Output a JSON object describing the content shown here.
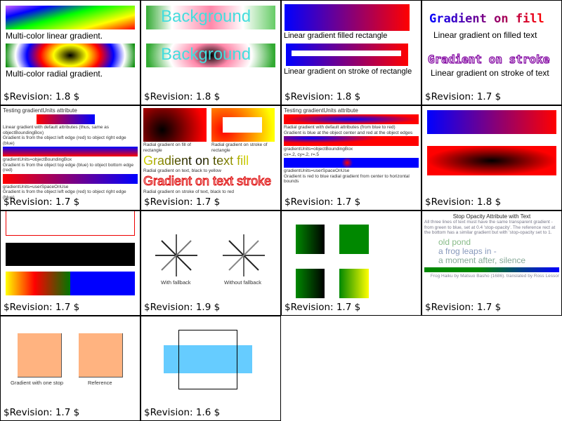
{
  "cells": [
    {
      "revision": "$Revision: 1.8 $",
      "captions": [
        "Multi-color linear gradient.",
        "Multi-color radial gradient."
      ]
    },
    {
      "revision": "$Revision: 1.8 $",
      "texts": [
        "Background",
        "Background"
      ]
    },
    {
      "revision": "$Revision: 1.8 $",
      "captions": [
        "Linear gradient filled rectangle",
        "Linear gradient on stroke of rectangle"
      ]
    },
    {
      "revision": "$Revision: 1.7 $",
      "big": [
        "Gradient on fill",
        "Gradient on stroke"
      ],
      "captions": [
        "Linear gradient on filled text",
        "Linear gradient on stroke of text"
      ]
    },
    {
      "revision": "$Revision: 1.7 $",
      "title": "Testing gradientUnits attribute",
      "captions": [
        "Linear gradient with default attributes (thus, same as objectBoundingBox)",
        "Gradient is from the object left edge (red) to object right edge (blue)",
        "gradientUnits=objectBoundingBox",
        "Gradient is from the object top edge (blue) to object bottom edge (red)",
        "gradientUnits=userSpaceOnUse",
        "Gradient is from the object left edge (red) to object right edge (blue)"
      ]
    },
    {
      "revision": "$Revision: 1.7 $",
      "captions": [
        "Radial gradient on fill of rectangle",
        "Radial gradient on stroke of rectangle",
        "Radial gradient on text, black to yellow",
        "Radial gradient on stroke of text, black to red"
      ],
      "big": [
        "Gradient on text fill",
        "Gradient on text stroke"
      ]
    },
    {
      "revision": "$Revision: 1.7 $",
      "title": "Testing gradientUnits attribute",
      "captions": [
        "Radial gradient with default attributes (from blue to red)",
        "Gradient is blue at the object center and red at the object edges",
        "gradientUnits=objectBoundingBox",
        "cx=.2, cy=.2, r=.5",
        "gradientUnits=userSpaceOnUse",
        "Gradient is red to blue radial gradient from center to horizontal bounds"
      ]
    },
    {
      "revision": "$Revision: 1.8 $"
    },
    {
      "revision": "$Revision: 1.7 $"
    },
    {
      "revision": "$Revision: 1.9 $",
      "captions": [
        "With fallback",
        "Without fallback"
      ]
    },
    {
      "revision": "$Revision: 1.7 $"
    },
    {
      "revision": "$Revision: 1.7 $",
      "title": "Stop Opacity Attribute with Text",
      "description": [
        "All three lines of text must have the same transparent gradient -",
        "from green to blue, set at 0.4 'stop-opacity'. The reference rect at",
        "the bottom has a similar gradient but with 'stop-opacity set to 1."
      ],
      "haiku": [
        "old pond",
        "a frog leaps in -",
        "a moment after, silence"
      ],
      "footer": "Frog Haiku by Matsuo Basho (1686). translated by Ross Lessor"
    },
    {
      "revision": "$Revision: 1.7 $",
      "captions": [
        "Gradient with one stop",
        "Reference"
      ]
    },
    {
      "revision": "$Revision: 1.6 $"
    }
  ],
  "colors": {
    "stop_color": "#ffb380",
    "light_blue": "#66ccff"
  }
}
